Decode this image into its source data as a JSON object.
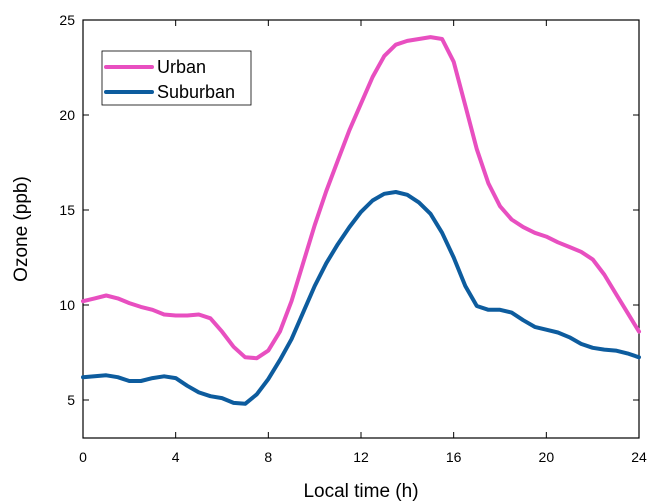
{
  "chart_data": {
    "type": "line",
    "title": "",
    "xlabel": "Local time (h)",
    "ylabel": "Ozone (ppb)",
    "xlim": [
      0,
      24
    ],
    "ylim": [
      3,
      25
    ],
    "xticks": [
      0,
      4,
      8,
      12,
      16,
      20,
      24
    ],
    "yticks": [
      5,
      10,
      15,
      20,
      25
    ],
    "x_tick_labels": [
      "0",
      "4",
      "8",
      "12",
      "16",
      "20",
      "24"
    ],
    "y_tick_labels": [
      "5",
      "10",
      "15",
      "20",
      "25"
    ],
    "grid": false,
    "legend_position": "top-left",
    "series": [
      {
        "name": "Urban",
        "color": "#e84fc0",
        "points": [
          [
            0,
            10.2
          ],
          [
            0.5,
            10.35
          ],
          [
            1,
            10.5
          ],
          [
            1.5,
            10.35
          ],
          [
            2,
            10.1
          ],
          [
            2.5,
            9.9
          ],
          [
            3,
            9.75
          ],
          [
            3.5,
            9.5
          ],
          [
            4,
            9.45
          ],
          [
            4.5,
            9.45
          ],
          [
            5,
            9.5
          ],
          [
            5.5,
            9.3
          ],
          [
            6,
            8.6
          ],
          [
            6.5,
            7.8
          ],
          [
            7,
            7.25
          ],
          [
            7.5,
            7.2
          ],
          [
            8,
            7.6
          ],
          [
            8.5,
            8.6
          ],
          [
            9,
            10.2
          ],
          [
            9.5,
            12.2
          ],
          [
            10,
            14.2
          ],
          [
            10.5,
            16.0
          ],
          [
            11,
            17.6
          ],
          [
            11.5,
            19.2
          ],
          [
            12,
            20.6
          ],
          [
            12.5,
            22.0
          ],
          [
            13,
            23.1
          ],
          [
            13.5,
            23.7
          ],
          [
            14,
            23.9
          ],
          [
            14.5,
            24.0
          ],
          [
            15,
            24.1
          ],
          [
            15.5,
            24.0
          ],
          [
            16,
            22.8
          ],
          [
            16.5,
            20.5
          ],
          [
            17,
            18.2
          ],
          [
            17.5,
            16.4
          ],
          [
            18,
            15.2
          ],
          [
            18.5,
            14.5
          ],
          [
            19,
            14.1
          ],
          [
            19.5,
            13.8
          ],
          [
            20,
            13.6
          ],
          [
            20.5,
            13.3
          ],
          [
            21,
            13.05
          ],
          [
            21.5,
            12.8
          ],
          [
            22,
            12.4
          ],
          [
            22.5,
            11.6
          ],
          [
            23,
            10.6
          ],
          [
            23.5,
            9.6
          ],
          [
            24,
            8.6
          ]
        ]
      },
      {
        "name": "Suburban",
        "color": "#0d5c9e",
        "points": [
          [
            0,
            6.2
          ],
          [
            0.5,
            6.25
          ],
          [
            1,
            6.3
          ],
          [
            1.5,
            6.2
          ],
          [
            2,
            6.0
          ],
          [
            2.5,
            6.0
          ],
          [
            3,
            6.15
          ],
          [
            3.5,
            6.25
          ],
          [
            4,
            6.15
          ],
          [
            4.5,
            5.75
          ],
          [
            5,
            5.4
          ],
          [
            5.5,
            5.2
          ],
          [
            6,
            5.1
          ],
          [
            6.5,
            4.85
          ],
          [
            7,
            4.8
          ],
          [
            7.5,
            5.3
          ],
          [
            8,
            6.1
          ],
          [
            8.5,
            7.1
          ],
          [
            9,
            8.2
          ],
          [
            9.5,
            9.6
          ],
          [
            10,
            11.0
          ],
          [
            10.5,
            12.2
          ],
          [
            11,
            13.2
          ],
          [
            11.5,
            14.1
          ],
          [
            12,
            14.9
          ],
          [
            12.5,
            15.5
          ],
          [
            13,
            15.85
          ],
          [
            13.5,
            15.95
          ],
          [
            14,
            15.8
          ],
          [
            14.5,
            15.4
          ],
          [
            15,
            14.8
          ],
          [
            15.5,
            13.8
          ],
          [
            16,
            12.5
          ],
          [
            16.5,
            11.0
          ],
          [
            17,
            9.95
          ],
          [
            17.5,
            9.75
          ],
          [
            18,
            9.75
          ],
          [
            18.5,
            9.6
          ],
          [
            19,
            9.2
          ],
          [
            19.5,
            8.85
          ],
          [
            20,
            8.7
          ],
          [
            20.5,
            8.55
          ],
          [
            21,
            8.3
          ],
          [
            21.5,
            7.95
          ],
          [
            22,
            7.75
          ],
          [
            22.5,
            7.65
          ],
          [
            23,
            7.6
          ],
          [
            23.5,
            7.45
          ],
          [
            24,
            7.25
          ]
        ]
      }
    ]
  }
}
